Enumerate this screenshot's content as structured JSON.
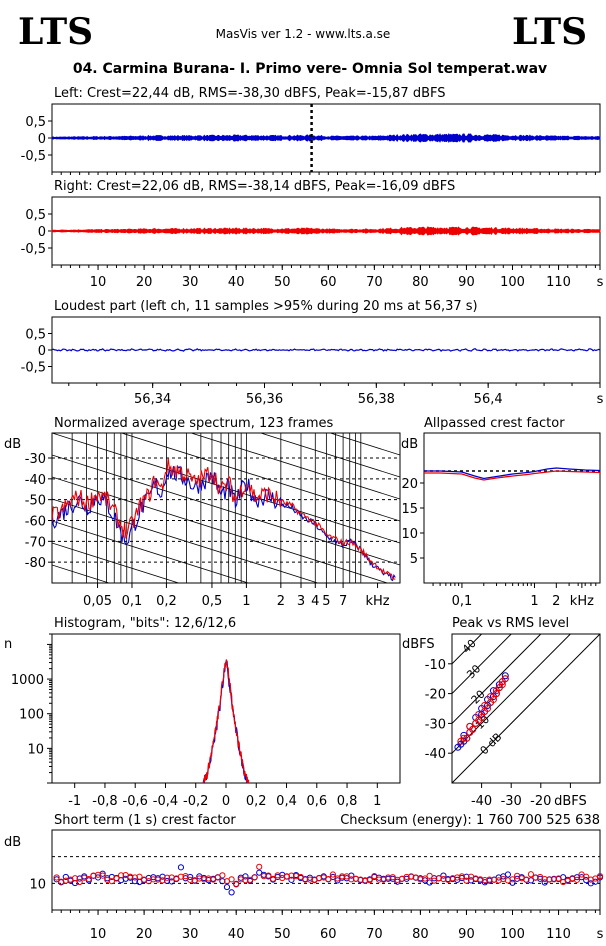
{
  "header": {
    "logo_left": "LTS",
    "logo_right": "LTS",
    "app": "MasVis ver 1.2 - www.lts.a.se",
    "filename": "04. Carmina Burana- I. Primo vere- Omnia Sol temperat.wav"
  },
  "colors": {
    "left": "#0000cc",
    "right": "#ee0000",
    "frame": "#000000"
  },
  "chart_data": [
    {
      "id": "left",
      "type": "line",
      "title": "Left: Crest=22,44 dB, RMS=-38,30 dBFS, Peak=-15,87 dBFS",
      "xlim": [
        0,
        119
      ],
      "ylim": [
        -1,
        1
      ],
      "yticks": [
        "0,5",
        "0",
        "-0,5"
      ],
      "ytick_values": [
        0.5,
        0,
        -0.5
      ],
      "marker_x": 56.37,
      "envelope": {
        "t": [
          0,
          10,
          18,
          22,
          30,
          40,
          50,
          56,
          60,
          70,
          76,
          80,
          90,
          100,
          110,
          119
        ],
        "amp": [
          0.02,
          0.03,
          0.04,
          0.05,
          0.05,
          0.06,
          0.05,
          0.06,
          0.04,
          0.04,
          0.07,
          0.08,
          0.08,
          0.06,
          0.04,
          0.03
        ]
      }
    },
    {
      "id": "right",
      "type": "line",
      "title": "Right: Crest=22,06 dB, RMS=-38,14 dBFS, Peak=-16,09 dBFS",
      "xlim": [
        0,
        119
      ],
      "ylim": [
        -1,
        1
      ],
      "yticks": [
        "0,5",
        "0",
        "-0,5"
      ],
      "ytick_values": [
        0.5,
        0,
        -0.5
      ],
      "xticks": [
        "10",
        "20",
        "30",
        "40",
        "50",
        "60",
        "70",
        "80",
        "90",
        "100",
        "110",
        "s"
      ],
      "xtick_values": [
        10,
        20,
        30,
        40,
        50,
        60,
        70,
        80,
        90,
        100,
        110,
        119
      ],
      "envelope": {
        "t": [
          0,
          10,
          18,
          22,
          30,
          40,
          50,
          56,
          60,
          70,
          76,
          80,
          90,
          100,
          110,
          119
        ],
        "amp": [
          0.02,
          0.03,
          0.04,
          0.05,
          0.05,
          0.06,
          0.05,
          0.06,
          0.04,
          0.04,
          0.07,
          0.08,
          0.08,
          0.06,
          0.04,
          0.03
        ]
      }
    },
    {
      "id": "loudest",
      "type": "line",
      "title": "Loudest part (left  ch, 11 samples >95% during 20 ms at 56,37 s)",
      "xlim": [
        56.322,
        56.42
      ],
      "ylim": [
        -1,
        1
      ],
      "yticks": [
        "0,5",
        "0",
        "-0,5"
      ],
      "ytick_values": [
        0.5,
        0,
        -0.5
      ],
      "xticks": [
        "56,34",
        "56,36",
        "56,38",
        "56,4",
        "s"
      ],
      "xtick_values": [
        56.34,
        56.36,
        56.38,
        56.4,
        56.42
      ],
      "amplitude": 0.03
    },
    {
      "id": "spectrum",
      "type": "line",
      "title": "Normalized average spectrum, 123 frames",
      "xscale": "log",
      "xlim": [
        0.02,
        22
      ],
      "ylim": [
        -90,
        -18
      ],
      "ylabel": "dB",
      "yticks": [
        "-30",
        "-40",
        "-50",
        "-60",
        "-70",
        "-80"
      ],
      "ytick_values": [
        -30,
        -40,
        -50,
        -60,
        -70,
        -80
      ],
      "xticks": [
        "0,05",
        "0,1",
        "0,2",
        "0,5",
        "1",
        "2",
        "3",
        "4",
        "5",
        "7",
        "kHz"
      ],
      "xtick_values": [
        0.05,
        0.1,
        0.2,
        0.5,
        1,
        2,
        3,
        4,
        5,
        7,
        14
      ],
      "grid": "dashed horizontal, vertical octave lines, diagonal reference lines",
      "series": [
        {
          "channel": "left",
          "x": [
            0.02,
            0.025,
            0.03,
            0.035,
            0.04,
            0.05,
            0.06,
            0.07,
            0.08,
            0.09,
            0.1,
            0.12,
            0.14,
            0.16,
            0.18,
            0.2,
            0.25,
            0.3,
            0.35,
            0.4,
            0.5,
            0.6,
            0.7,
            0.8,
            0.9,
            1,
            1.2,
            1.5,
            2,
            2.5,
            3,
            4,
            5,
            6,
            7,
            8,
            10,
            12,
            16,
            20
          ],
          "y": [
            -60,
            -56,
            -52,
            -50,
            -54,
            -48,
            -52,
            -58,
            -66,
            -70,
            -64,
            -54,
            -50,
            -42,
            -48,
            -36,
            -38,
            -40,
            -44,
            -42,
            -38,
            -48,
            -44,
            -52,
            -46,
            -42,
            -50,
            -48,
            -52,
            -54,
            -58,
            -62,
            -68,
            -70,
            -72,
            -70,
            -74,
            -80,
            -86,
            -88
          ]
        },
        {
          "channel": "right",
          "x": [
            0.02,
            0.025,
            0.03,
            0.035,
            0.04,
            0.05,
            0.06,
            0.07,
            0.08,
            0.09,
            0.1,
            0.12,
            0.14,
            0.16,
            0.18,
            0.2,
            0.25,
            0.3,
            0.35,
            0.4,
            0.5,
            0.6,
            0.7,
            0.8,
            0.9,
            1,
            1.2,
            1.5,
            2,
            2.5,
            3,
            4,
            5,
            6,
            7,
            8,
            10,
            12,
            16,
            20
          ],
          "y": [
            -58,
            -55,
            -50,
            -49,
            -52,
            -47,
            -50,
            -56,
            -62,
            -66,
            -62,
            -52,
            -48,
            -40,
            -46,
            -34,
            -36,
            -38,
            -42,
            -40,
            -36,
            -46,
            -42,
            -50,
            -45,
            -41,
            -49,
            -47,
            -51,
            -53,
            -57,
            -61,
            -67,
            -69,
            -71,
            -70,
            -74,
            -79,
            -85,
            -88
          ]
        }
      ]
    },
    {
      "id": "allpass",
      "type": "line",
      "title": "Allpassed crest factor",
      "xscale": "log",
      "xlim": [
        0.03,
        8
      ],
      "ylim": [
        0,
        30
      ],
      "ylabel": "dB",
      "yticks": [
        "20",
        "15",
        "10",
        "5"
      ],
      "ytick_values": [
        20,
        15,
        10,
        5
      ],
      "xticks": [
        "0,1",
        "1",
        "2",
        "kHz"
      ],
      "xtick_values": [
        0.1,
        1,
        2,
        4.5
      ],
      "reference_y": 22.4,
      "series": [
        {
          "channel": "left",
          "x": [
            0.03,
            0.05,
            0.1,
            0.15,
            0.2,
            0.3,
            0.5,
            0.8,
            1,
            1.5,
            2,
            3,
            5,
            8
          ],
          "y": [
            22.4,
            22.4,
            22.2,
            21.4,
            20.9,
            21.3,
            21.8,
            22.1,
            22.3,
            22.8,
            23,
            22.8,
            22.6,
            22.5
          ]
        },
        {
          "channel": "right",
          "x": [
            0.03,
            0.05,
            0.1,
            0.15,
            0.2,
            0.3,
            0.5,
            0.8,
            1,
            1.5,
            2,
            3,
            5,
            8
          ],
          "y": [
            22.0,
            22.0,
            21.8,
            21.0,
            20.6,
            21.0,
            21.4,
            21.7,
            21.9,
            22.2,
            22.4,
            22.3,
            22.2,
            22.1
          ]
        }
      ]
    },
    {
      "id": "histogram",
      "type": "line",
      "title": "Histogram, \"bits\": 12,6/12,6",
      "xlim": [
        -1.15,
        1.15
      ],
      "ylim": [
        1,
        20000
      ],
      "yscale": "log",
      "ylabel": "n",
      "yticks": [
        "1000",
        "100",
        "10"
      ],
      "ytick_values": [
        1000,
        100,
        10
      ],
      "xticks": [
        "-1",
        "-0,8",
        "-0,6",
        "-0,4",
        "-0,2",
        "0",
        "0,2",
        "0,4",
        "0,6",
        "0,8",
        "1"
      ],
      "xtick_values": [
        -1,
        -0.8,
        -0.6,
        -0.4,
        -0.2,
        0,
        0.2,
        0.4,
        0.6,
        0.8,
        1
      ],
      "series": [
        {
          "channel": "left",
          "x": [
            -0.15,
            -0.12,
            -0.1,
            -0.08,
            -0.06,
            -0.04,
            -0.02,
            0,
            0.02,
            0.04,
            0.06,
            0.08,
            0.1,
            0.12,
            0.15
          ],
          "y": [
            1,
            2,
            5,
            14,
            45,
            160,
            800,
            3500,
            800,
            160,
            45,
            14,
            5,
            2,
            1
          ]
        },
        {
          "channel": "right",
          "x": [
            -0.15,
            -0.12,
            -0.1,
            -0.08,
            -0.06,
            -0.04,
            -0.02,
            0,
            0.02,
            0.04,
            0.06,
            0.08,
            0.1,
            0.12,
            0.15
          ],
          "y": [
            1,
            2,
            6,
            15,
            50,
            170,
            850,
            3600,
            850,
            170,
            50,
            15,
            6,
            2,
            1
          ]
        }
      ]
    },
    {
      "id": "peak_rms",
      "type": "scatter",
      "title": "Peak vs RMS level",
      "xlim": [
        -50,
        0
      ],
      "ylim": [
        -50,
        0
      ],
      "ylabel": "dBFS",
      "yticks": [
        "-10",
        "-20",
        "-30",
        "-40"
      ],
      "ytick_values": [
        -10,
        -20,
        -30,
        -40
      ],
      "xticks": [
        "-40",
        "-30",
        "-20",
        "dBFS"
      ],
      "xtick_values": [
        -40,
        -30,
        -20,
        -10
      ],
      "diagonals": [
        {
          "label": "40",
          "offset": 40
        },
        {
          "label": "30",
          "offset": 30
        },
        {
          "label": "20",
          "offset": 20
        },
        {
          "label": "10",
          "offset": 10
        },
        {
          "label": "0 dB",
          "offset": 0
        }
      ],
      "series": [
        {
          "channel": "left",
          "x": [
            -48,
            -47,
            -46,
            -46,
            -45,
            -44,
            -44,
            -43,
            -42,
            -42,
            -41,
            -40,
            -40,
            -39,
            -38,
            -38,
            -37,
            -36,
            -36,
            -35,
            -34,
            -34,
            -33,
            -32,
            -32
          ],
          "y": [
            -38,
            -37,
            -36,
            -34,
            -35,
            -33,
            -31,
            -32,
            -30,
            -28,
            -29,
            -27,
            -25,
            -26,
            -24,
            -22,
            -23,
            -21,
            -19,
            -20,
            -18,
            -17,
            -16,
            -15,
            -14
          ]
        },
        {
          "channel": "right",
          "x": [
            -47,
            -46,
            -45,
            -44,
            -44,
            -43,
            -42,
            -41,
            -41,
            -40,
            -39,
            -39,
            -38,
            -37,
            -37,
            -36,
            -35,
            -35,
            -34,
            -33,
            -33,
            -32
          ],
          "y": [
            -36,
            -35,
            -35,
            -33,
            -31,
            -32,
            -30,
            -29,
            -27,
            -28,
            -26,
            -24,
            -25,
            -23,
            -21,
            -22,
            -20,
            -19,
            -18,
            -17,
            -16,
            -15
          ]
        }
      ]
    },
    {
      "id": "short_crest",
      "type": "scatter",
      "title": "Short term (1 s) crest factor",
      "checksum": "Checksum (energy):  1 760 700 525 638",
      "xlim": [
        0,
        119
      ],
      "ylim": [
        0,
        30
      ],
      "ylabel": "dB",
      "yticks": [
        "10"
      ],
      "ytick_values": [
        10
      ],
      "reference_lines": [
        10,
        20
      ],
      "xticks": [
        "10",
        "20",
        "30",
        "40",
        "50",
        "60",
        "70",
        "80",
        "90",
        "100",
        "110",
        "s"
      ],
      "xtick_values": [
        10,
        20,
        30,
        40,
        50,
        60,
        70,
        80,
        90,
        100,
        110,
        119
      ],
      "series": [
        {
          "channel": "left",
          "y": [
            11.5,
            10.4,
            12.4,
            11.0,
            10.1,
            11.8,
            12.6,
            11.1,
            12.8,
            12.2,
            13.6,
            11.9,
            12.4,
            12.0,
            11.2,
            11.7,
            12.1,
            10.8,
            10.5,
            11.2,
            12.0,
            12.3,
            11.9,
            12.5,
            10.9,
            10.7,
            11.6,
            16.0,
            11.9,
            12.4,
            11.1,
            12.6,
            12.0,
            11.2,
            11.7,
            12.3,
            10.8,
            8.6,
            6.6,
            9.8,
            12.1,
            12.6,
            10.9,
            12.3,
            14.0,
            13.2,
            12.6,
            11.4,
            12.4,
            13.2,
            12.6,
            11.3,
            13.1,
            12.0,
            11.6,
            12.1,
            11.4,
            12.0,
            12.6,
            11.5,
            12.4,
            11.1,
            12.1,
            11.9,
            12.9,
            11.7,
            11.2,
            11.1,
            11.5,
            12.4,
            12.1,
            11.7,
            11.7,
            11.7,
            10.6,
            11.7,
            11.7,
            12.5,
            12.1,
            11.9,
            11.1,
            10.3,
            11.9,
            11.9,
            12.9,
            11.6,
            11.6,
            11.3,
            12.0,
            12.5,
            11.1,
            11.6,
            11.1,
            10.4,
            11.0,
            11.4,
            12.2,
            12.6,
            13.3,
            10.2,
            11.7,
            12.3,
            11.3,
            11.1,
            12.2,
            11.7,
            10.3,
            11.5,
            11.7,
            11.6,
            12.3,
            11.3,
            11.7,
            12.3,
            12.3,
            11.2,
            10.0,
            10.6,
            12.2
          ]
        },
        {
          "channel": "right",
          "y": [
            12.2,
            10.6,
            11.0,
            11.4,
            11.9,
            10.5,
            12.1,
            11.6,
            12.9,
            13.2,
            12.9,
            11.3,
            10.8,
            11.8,
            13.0,
            13.1,
            12.5,
            12.2,
            12.5,
            11.4,
            10.8,
            11.5,
            11.4,
            11.1,
            12.1,
            12.2,
            11.8,
            12.5,
            12.7,
            11.3,
            10.9,
            11.8,
            11.5,
            11.8,
            11.4,
            12.2,
            13.0,
            10.8,
            11.5,
            9.6,
            11.5,
            11.2,
            11.3,
            12.2,
            16.2,
            12.7,
            12.9,
            11.7,
            13.0,
            12.0,
            12.5,
            12.9,
            12.7,
            12.4,
            11.4,
            11.4,
            11.2,
            11.9,
            12.2,
            11.6,
            13.3,
            11.8,
            12.6,
            12.6,
            11.5,
            11.7,
            11.4,
            10.9,
            11.2,
            12.7,
            11.4,
            11.4,
            12.2,
            12.3,
            11.3,
            11.7,
            12.4,
            12.6,
            12.2,
            11.5,
            11.8,
            12.8,
            11.0,
            11.9,
            11.6,
            11.3,
            11.9,
            12.2,
            12.6,
            11.0,
            12.5,
            11.8,
            11.5,
            11.2,
            11.4,
            11.3,
            11.1,
            11.6,
            11.1,
            11.5,
            12.8,
            11.9,
            11.4,
            13.4,
            12.1,
            12.4,
            11.6,
            11.4,
            11.5,
            11.8,
            10.5,
            10.9,
            11.9,
            11.3,
            13.3,
            12.5,
            11.4,
            11.8,
            12.7
          ]
        }
      ]
    }
  ]
}
